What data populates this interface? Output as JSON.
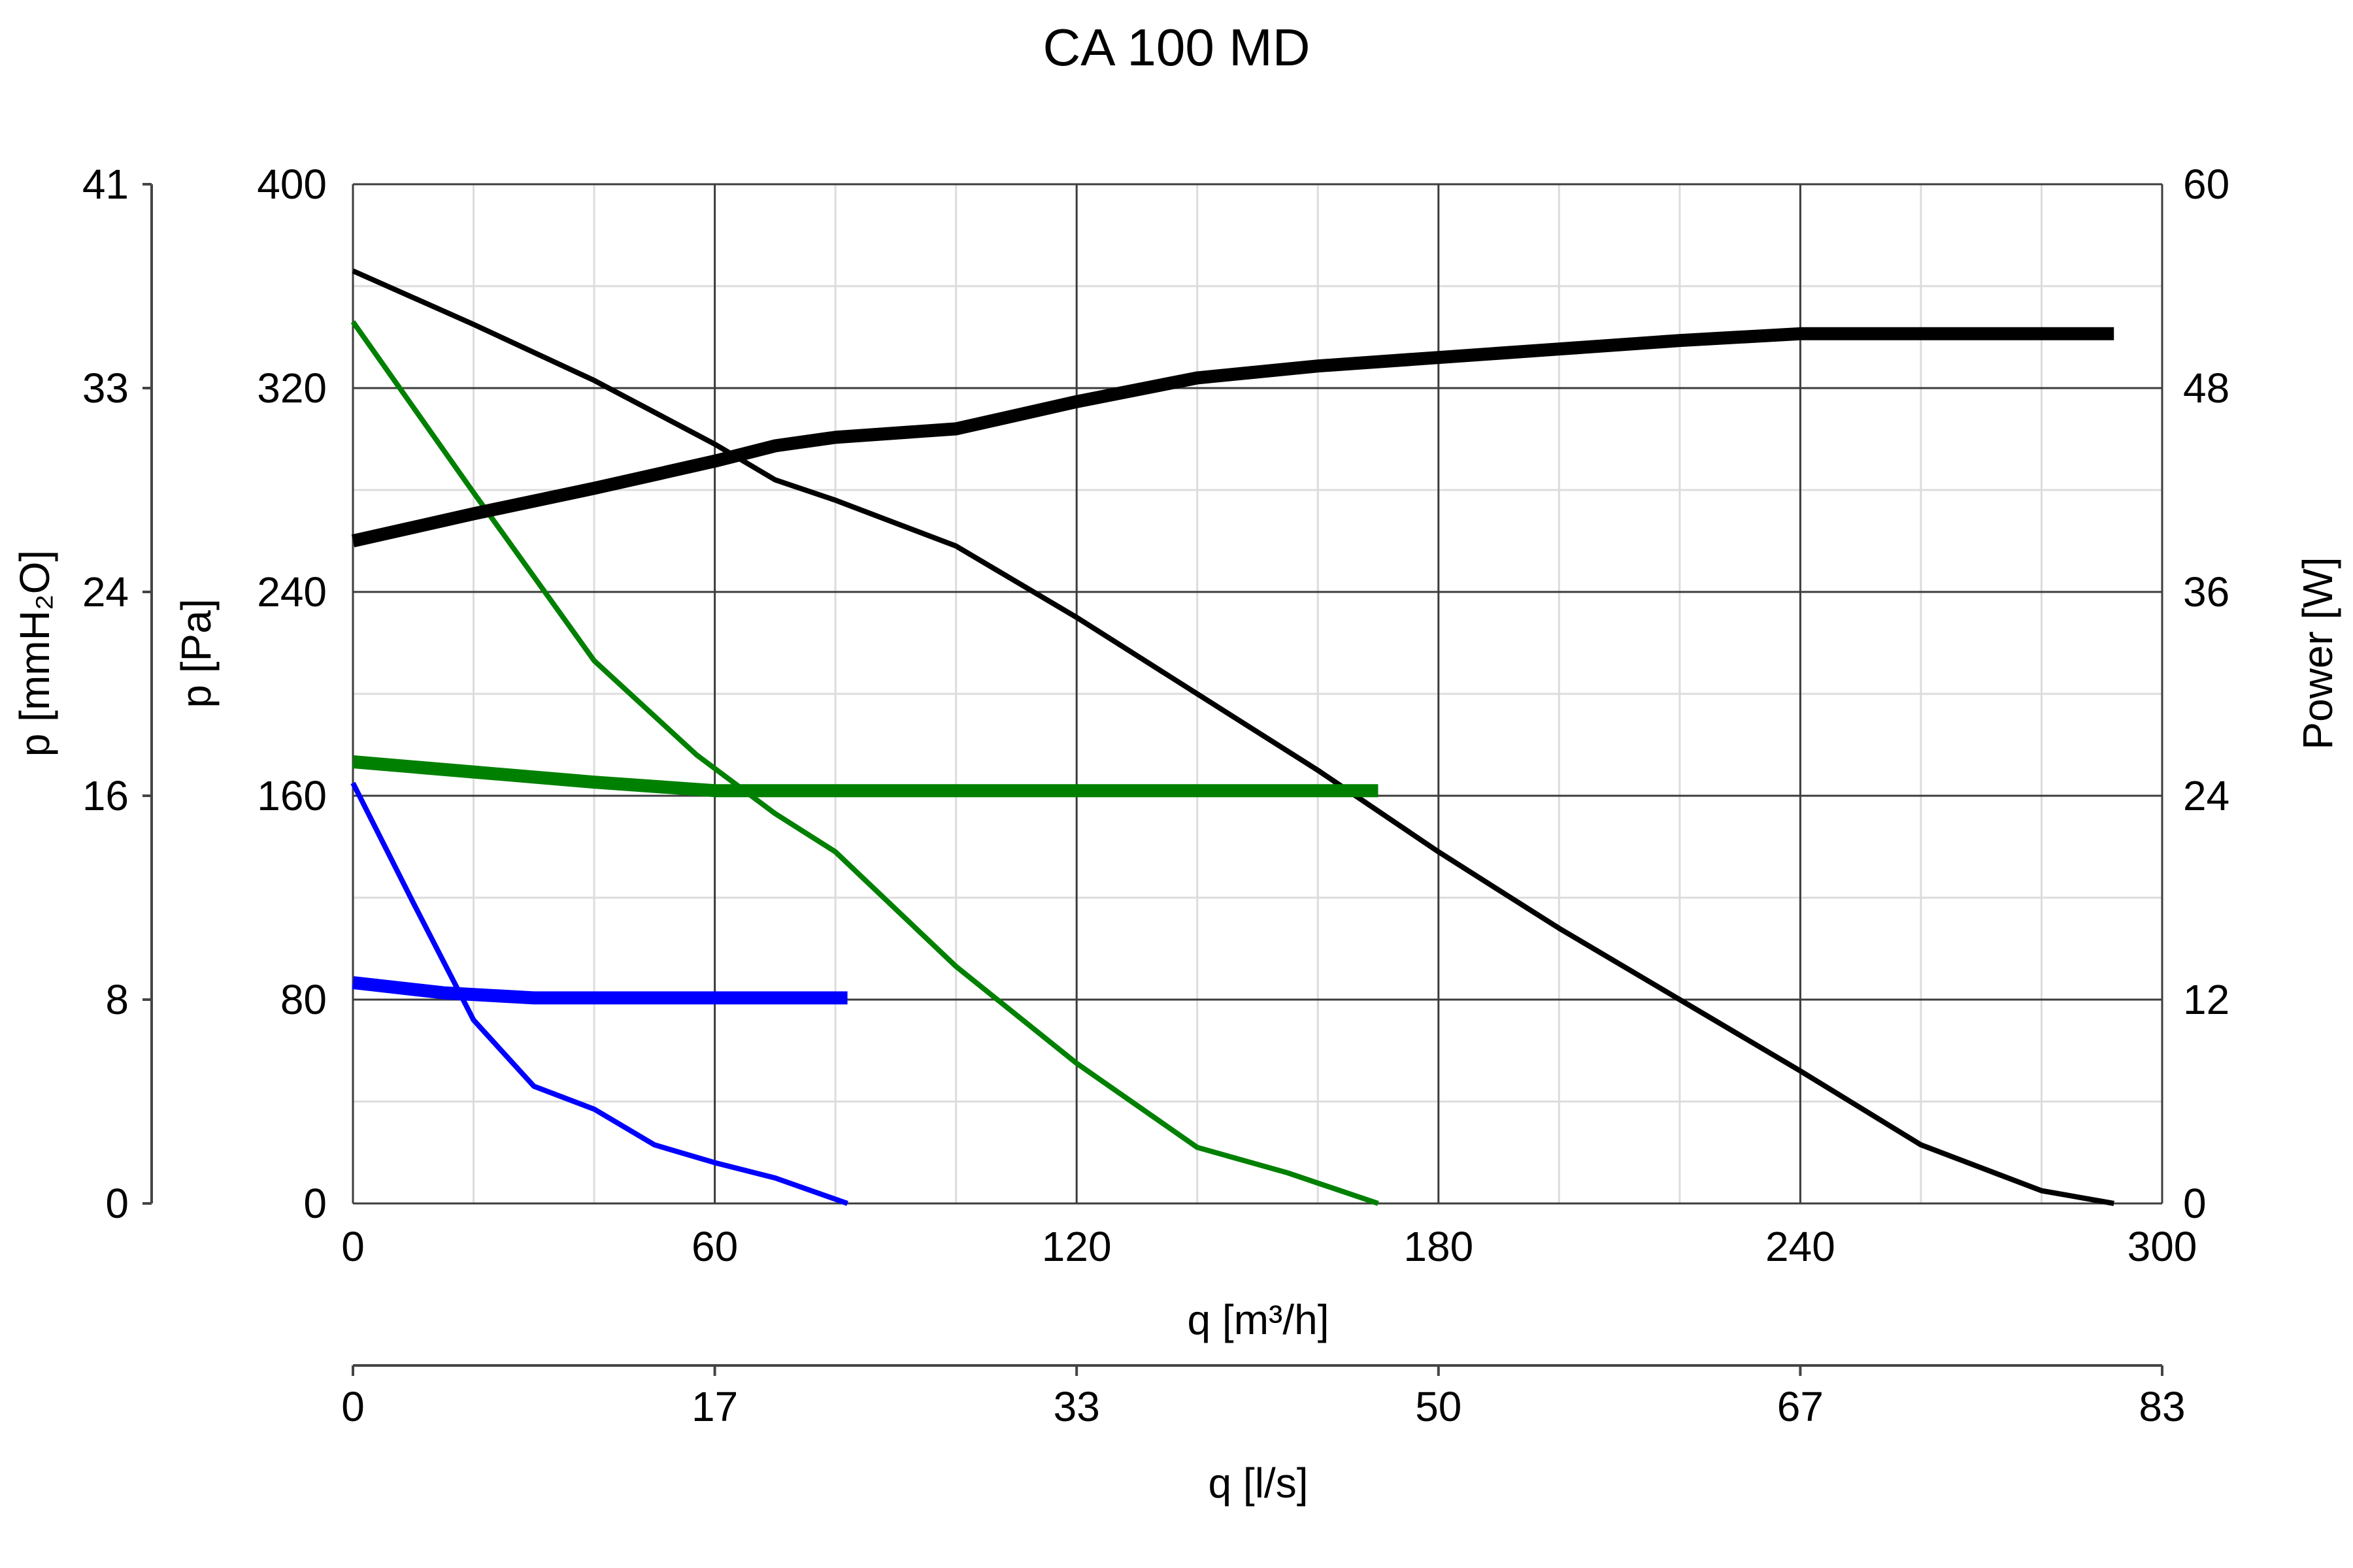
{
  "chart_data": {
    "type": "line",
    "title": "CA 100 MD",
    "x_axis": {
      "label": "q [m³/h]",
      "range": [
        0,
        300
      ],
      "ticks": [
        "0",
        "60",
        "120",
        "180",
        "240",
        "300"
      ]
    },
    "x2_axis": {
      "label": "q [l/s]",
      "ticks": [
        "0",
        "17",
        "33",
        "50",
        "67",
        "83"
      ]
    },
    "y_axis": {
      "label": "p [Pa]",
      "range": [
        0,
        400
      ],
      "ticks": [
        "0",
        "80",
        "160",
        "240",
        "320",
        "400"
      ]
    },
    "y_axis_mmh2o": {
      "label": "p [mmH₂O]",
      "ticks": [
        "0",
        "8",
        "16",
        "24",
        "33",
        "41"
      ]
    },
    "y2_axis": {
      "label": "Power [W]",
      "range": [
        0,
        60
      ],
      "ticks": [
        "0",
        "12",
        "24",
        "36",
        "48",
        "60"
      ]
    },
    "grid": true,
    "series": [
      {
        "name": "pressure-high",
        "color": "#000000",
        "axis": "pressure",
        "weight": "thin",
        "x": [
          0,
          20,
          40,
          60,
          70,
          80,
          90,
          100,
          120,
          140,
          160,
          180,
          200,
          220,
          240,
          260,
          280,
          292
        ],
        "y": [
          366,
          345,
          323,
          298,
          284,
          276,
          267,
          258,
          230,
          200,
          170,
          138,
          108,
          80,
          52,
          23,
          5,
          0
        ]
      },
      {
        "name": "pressure-medium",
        "color": "#008000",
        "axis": "pressure",
        "weight": "thin",
        "x": [
          0,
          20,
          40,
          57,
          70,
          80,
          100,
          120,
          140,
          155,
          170
        ],
        "y": [
          346,
          279,
          213,
          176,
          153,
          138,
          93,
          55,
          22,
          12,
          0
        ]
      },
      {
        "name": "pressure-low",
        "color": "#0000ff",
        "axis": "pressure",
        "weight": "thin",
        "x": [
          0,
          10,
          20,
          30,
          40,
          50,
          60,
          70,
          82
        ],
        "y": [
          165,
          118,
          72,
          46,
          37,
          23,
          16,
          10,
          0
        ]
      },
      {
        "name": "power-high",
        "color": "#000000",
        "axis": "power",
        "weight": "thick",
        "x": [
          0,
          20,
          40,
          60,
          70,
          80,
          100,
          120,
          140,
          160,
          180,
          200,
          220,
          240,
          260,
          292
        ],
        "y": [
          39,
          40.6,
          42.1,
          43.7,
          44.6,
          45.1,
          45.6,
          47.2,
          48.6,
          49.3,
          49.8,
          50.3,
          50.8,
          51.2,
          51.2,
          51.2
        ]
      },
      {
        "name": "power-medium",
        "color": "#008000",
        "axis": "power",
        "weight": "thick",
        "x": [
          0,
          20,
          40,
          60,
          80,
          120,
          170
        ],
        "y": [
          26,
          25.4,
          24.8,
          24.3,
          24.3,
          24.3,
          24.3
        ]
      },
      {
        "name": "power-low",
        "color": "#0000ff",
        "axis": "power",
        "weight": "thick",
        "x": [
          0,
          15,
          30,
          40,
          60,
          82
        ],
        "y": [
          13,
          12.4,
          12.1,
          12.1,
          12.1,
          12.1
        ]
      }
    ]
  }
}
